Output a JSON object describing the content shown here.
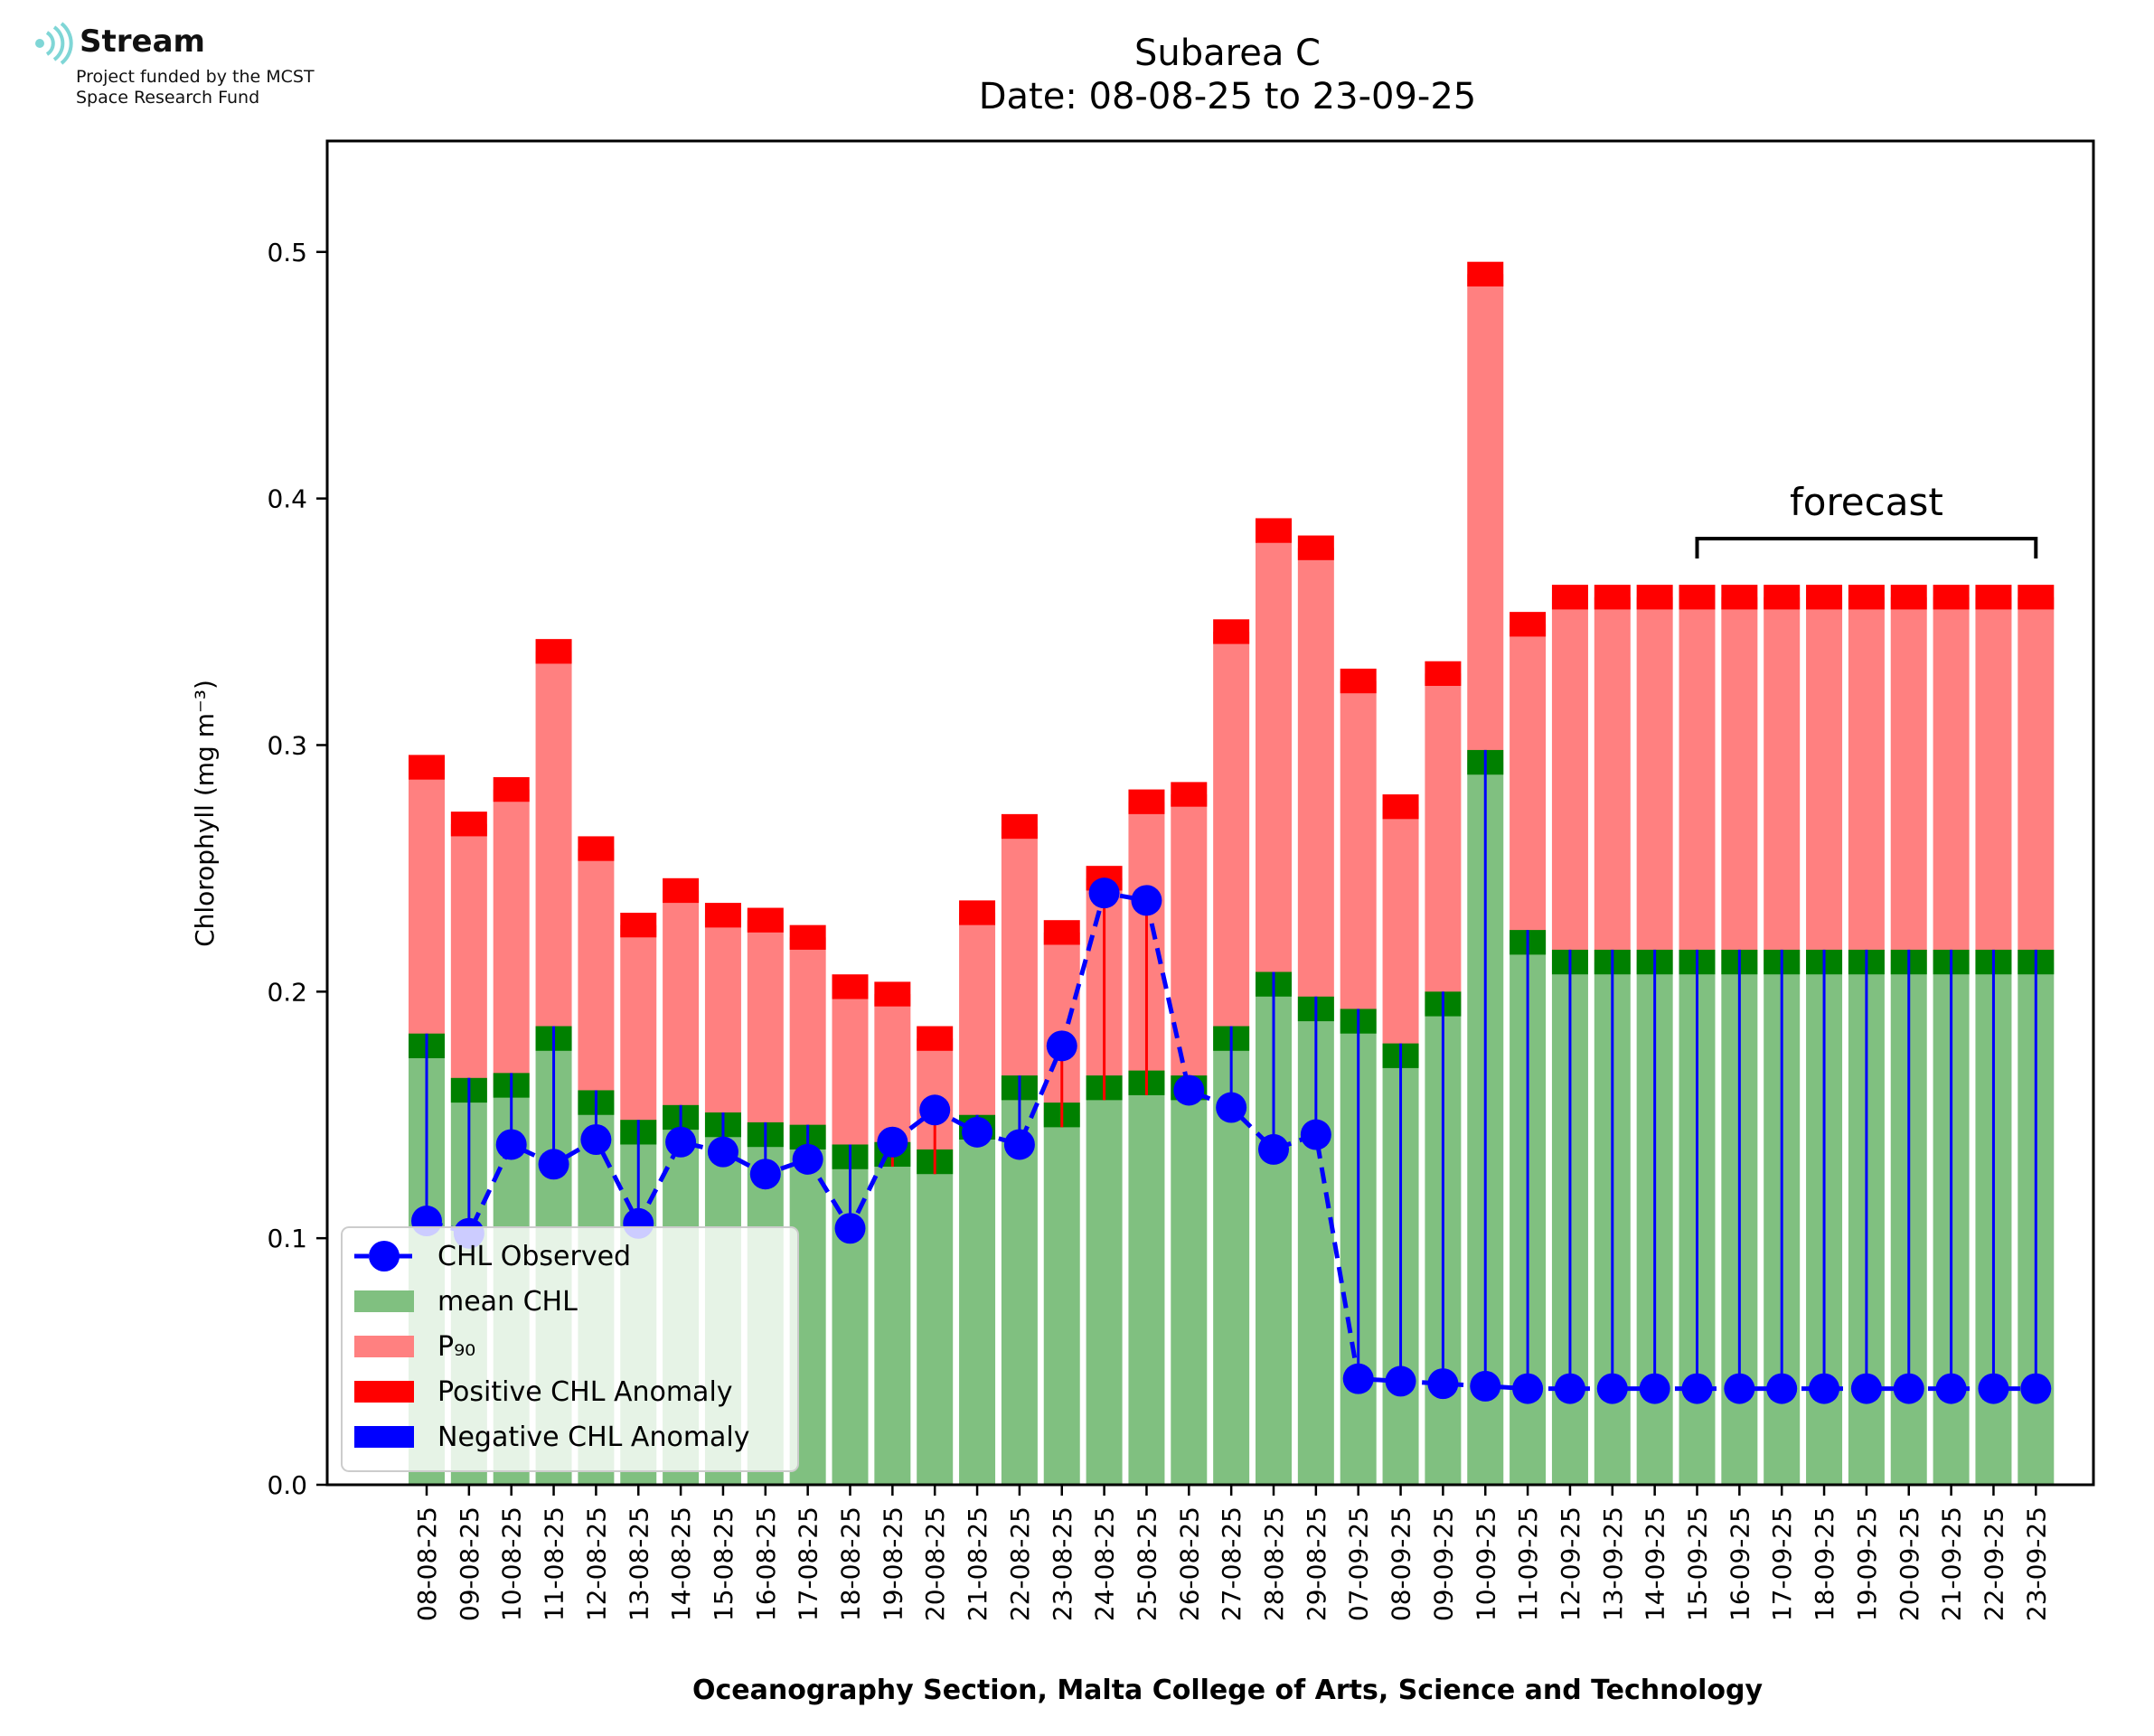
{
  "logo": {
    "name": "Stream",
    "line1": "Project funded by the MCST",
    "line2": "Space Research Fund"
  },
  "chart_data": {
    "type": "bar",
    "title": "Subarea C",
    "subtitle": "Date: 08-08-25 to 23-09-25",
    "xlabel": "Oceanography Section, Malta College of Arts, Science and Technology",
    "ylabel": "Chlorophyll (mg m⁻³)",
    "ylim": [
      0,
      0.545
    ],
    "yticks": [
      "0.0",
      "0.1",
      "0.2",
      "0.3",
      "0.4",
      "0.5"
    ],
    "categories": [
      "08-08-25",
      "09-08-25",
      "10-08-25",
      "11-08-25",
      "12-08-25",
      "13-08-25",
      "14-08-25",
      "15-08-25",
      "16-08-25",
      "17-08-25",
      "18-08-25",
      "19-08-25",
      "20-08-25",
      "21-08-25",
      "22-08-25",
      "23-08-25",
      "24-08-25",
      "25-08-25",
      "26-08-25",
      "27-08-25",
      "28-08-25",
      "29-08-25",
      "07-09-25",
      "08-09-25",
      "09-09-25",
      "10-09-25",
      "11-09-25",
      "12-09-25",
      "13-09-25",
      "14-09-25",
      "15-09-25",
      "16-09-25",
      "17-09-25",
      "18-09-25",
      "19-09-25",
      "20-09-25",
      "21-09-25",
      "22-09-25",
      "23-09-25"
    ],
    "series": [
      {
        "name": "mean CHL",
        "color": "#80c080",
        "values": [
          0.178,
          0.16,
          0.162,
          0.181,
          0.155,
          0.143,
          0.149,
          0.146,
          0.142,
          0.141,
          0.133,
          0.134,
          0.131,
          0.145,
          0.161,
          0.15,
          0.161,
          0.163,
          0.161,
          0.181,
          0.203,
          0.193,
          0.188,
          0.174,
          0.195,
          0.293,
          0.22,
          0.212,
          0.212,
          0.212,
          0.212,
          0.212,
          0.212,
          0.212,
          0.212,
          0.212,
          0.212,
          0.212,
          0.212
        ]
      },
      {
        "name": "P₉₀",
        "color": "#ff8080",
        "values": [
          0.291,
          0.268,
          0.282,
          0.338,
          0.258,
          0.227,
          0.241,
          0.231,
          0.229,
          0.222,
          0.202,
          0.199,
          0.181,
          0.232,
          0.267,
          0.224,
          0.246,
          0.277,
          0.28,
          0.346,
          0.387,
          0.38,
          0.326,
          0.275,
          0.329,
          0.491,
          0.349,
          0.36,
          0.36,
          0.36,
          0.36,
          0.36,
          0.36,
          0.36,
          0.36,
          0.36,
          0.36,
          0.36,
          0.36
        ]
      },
      {
        "name": "CHL Observed",
        "color": "#0000ff",
        "values": [
          0.107,
          0.102,
          0.138,
          0.13,
          0.14,
          0.106,
          0.139,
          0.135,
          0.126,
          0.132,
          0.104,
          0.139,
          0.152,
          0.143,
          0.138,
          0.178,
          0.24,
          0.237,
          0.16,
          0.153,
          0.136,
          0.142,
          0.043,
          0.042,
          0.041,
          0.04,
          0.039,
          0.039,
          0.039,
          0.039,
          0.039,
          0.039,
          0.039,
          0.039,
          0.039,
          0.039,
          0.039,
          0.039,
          0.039
        ]
      }
    ],
    "band_half_width": 0.005,
    "legend": {
      "position": "lower-left",
      "entries": [
        {
          "label": "CHL Observed",
          "kind": "line-marker",
          "color": "#0000ff"
        },
        {
          "label": "mean CHL",
          "kind": "patch",
          "color": "#80c080"
        },
        {
          "label": "P₉₀",
          "kind": "patch",
          "color": "#ff8080"
        },
        {
          "label": "Positive CHL Anomaly",
          "kind": "patch",
          "color": "#ff0000"
        },
        {
          "label": "Negative CHL Anomaly",
          "kind": "patch",
          "color": "#0000ff"
        }
      ]
    },
    "annotation": {
      "text": "forecast",
      "from_category": "15-09-25",
      "to_category": "23-09-25"
    },
    "colors": {
      "mean_band": "#008000",
      "p90_band": "#ff0000",
      "positive_anomaly": "#ff0000",
      "negative_anomaly": "#0000ff",
      "observed": "#0000ff",
      "logo_arcs": "#7fd6d6"
    }
  }
}
